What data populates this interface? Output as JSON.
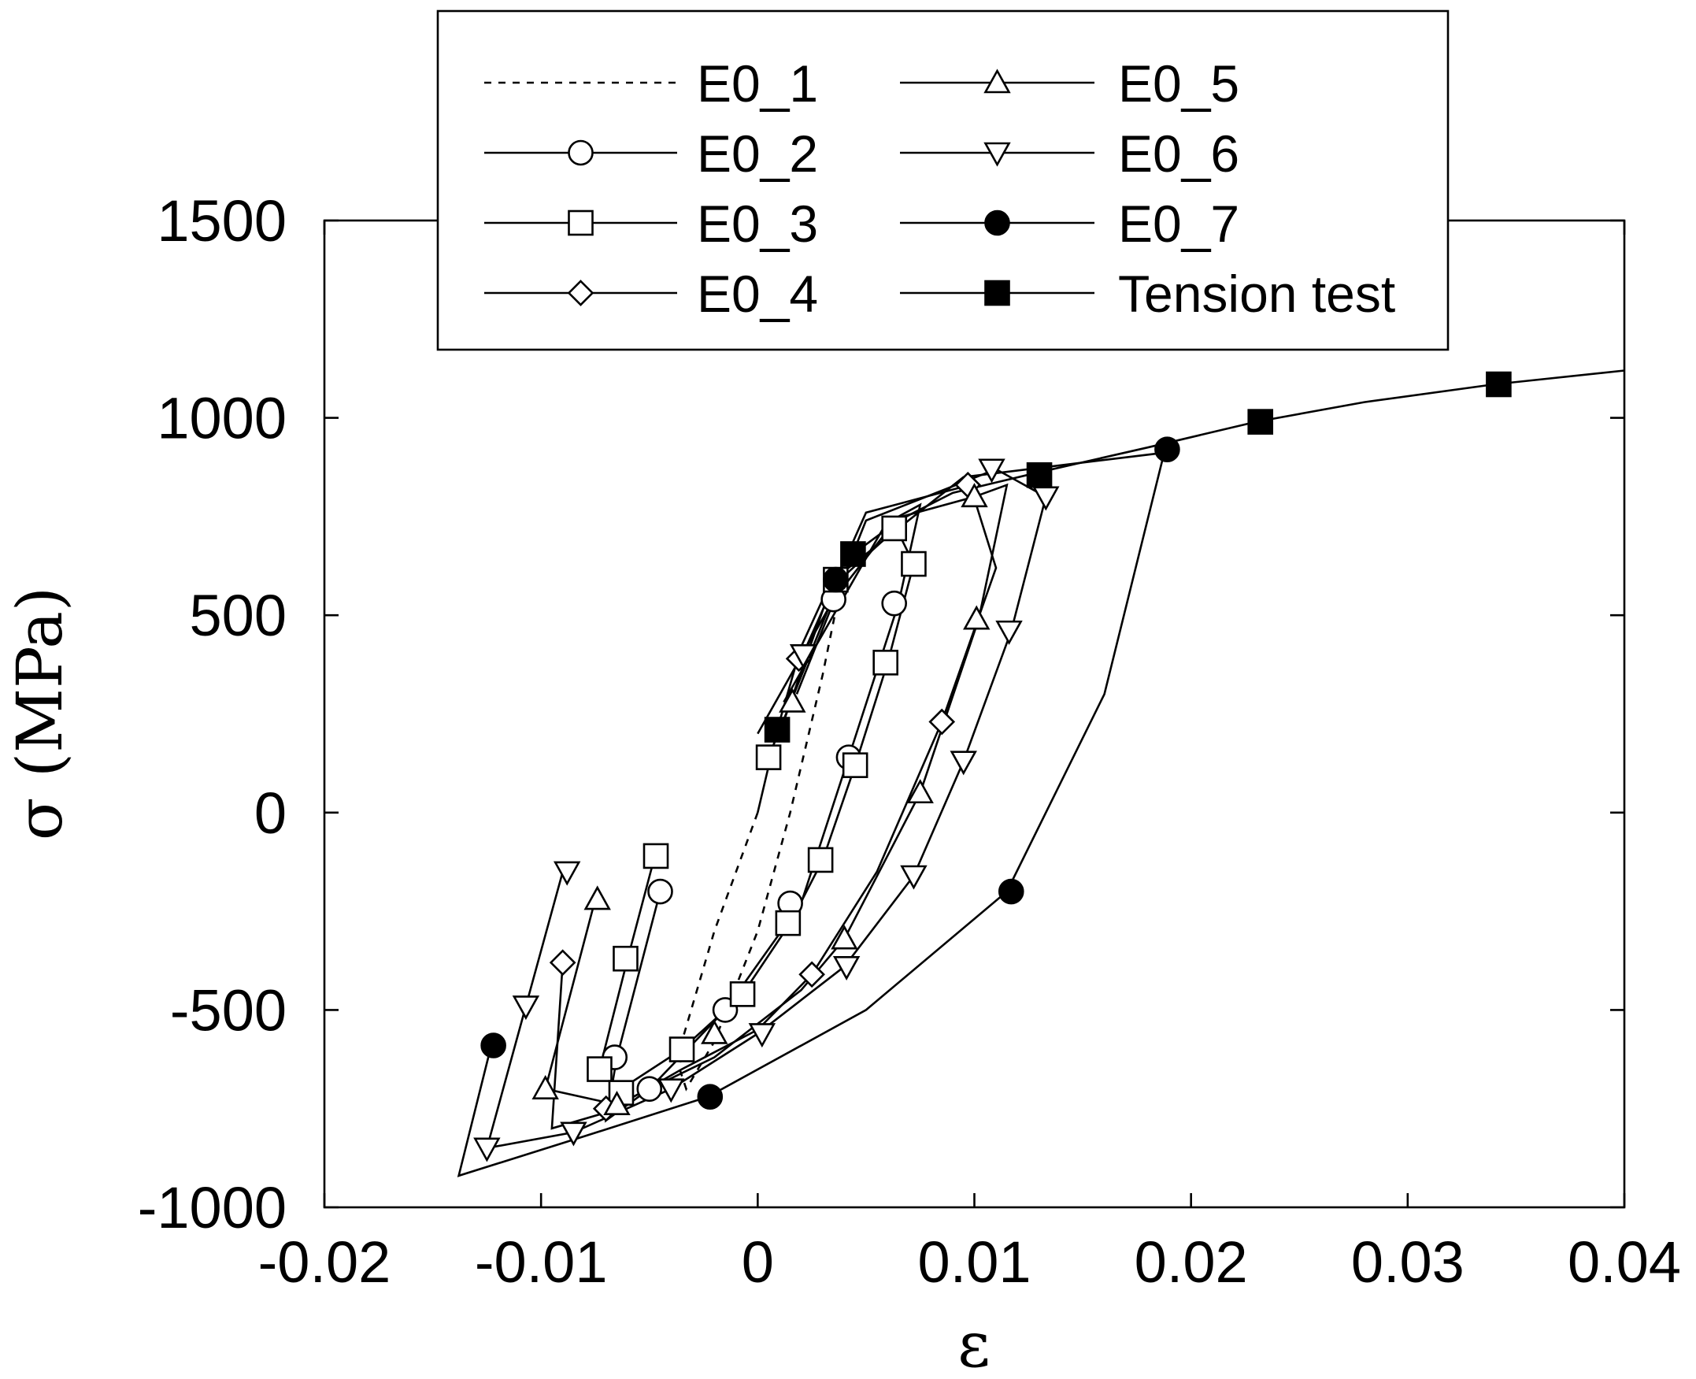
{
  "chart_data": {
    "type": "line",
    "xlabel": "ε",
    "ylabel": "σ (MPa)",
    "xlim": [
      -0.02,
      0.04
    ],
    "ylim": [
      -1000,
      1500
    ],
    "x_ticks": [
      -0.02,
      -0.01,
      0,
      0.01,
      0.02,
      0.03,
      0.04
    ],
    "x_tick_labels": [
      "-0.02",
      "-0.01",
      "0",
      "0.01",
      "0.02",
      "0.03",
      "0.04"
    ],
    "y_ticks": [
      -1000,
      -500,
      0,
      500,
      1000,
      1500
    ],
    "y_tick_labels": [
      "-1000",
      "-500",
      "0",
      "500",
      "1000",
      "1500"
    ],
    "grid": false,
    "legend_position": "top-center",
    "series": [
      {
        "name": "E0_1",
        "marker": "none",
        "dashed": true,
        "x": [
          0.0,
          -0.002,
          -0.0035,
          -0.0036,
          -0.0033,
          -0.002,
          0.0,
          0.0015,
          0.003,
          0.004
        ],
        "y": [
          0,
          -300,
          -580,
          -650,
          -700,
          -580,
          -300,
          0,
          350,
          620
        ]
      },
      {
        "name": "E0_2",
        "marker": "circle",
        "dashed": false,
        "x": [
          -0.0045,
          -0.0065,
          -0.007,
          -0.005,
          -0.0015,
          0.002,
          0.0042,
          0.0065,
          0.0075,
          0.0065,
          0.0035,
          0.0
        ],
        "y": [
          -200,
          -620,
          -780,
          -700,
          -500,
          -230,
          140,
          530,
          780,
          750,
          540,
          200
        ]
      },
      {
        "name": "E0_3",
        "marker": "square",
        "dashed": false,
        "x": [
          -0.0047,
          -0.006,
          -0.0073,
          -0.0063,
          -0.0035,
          -0.0007,
          0.0015,
          0.003,
          0.0045,
          0.006,
          0.0072,
          0.0064,
          0.0038,
          0.0005
        ],
        "y": [
          -100,
          -370,
          -650,
          -700,
          -600,
          -460,
          -280,
          -120,
          120,
          380,
          630,
          720,
          590,
          140
        ]
      },
      {
        "name": "E0_4",
        "marker": "diamond",
        "dashed": false,
        "x": [
          -0.009,
          -0.0095,
          -0.007,
          -0.0035,
          0.0,
          0.0025,
          0.0055,
          0.0085,
          0.011,
          0.0098,
          0.005,
          0.002
        ],
        "y": [
          -380,
          -800,
          -760,
          -650,
          -550,
          -410,
          -150,
          230,
          620,
          830,
          760,
          390
        ]
      },
      {
        "name": "E0_5",
        "marker": "triangle-up",
        "dashed": false,
        "x": [
          -0.0075,
          -0.0098,
          -0.0065,
          -0.002,
          0.002,
          0.004,
          0.0075,
          0.0102,
          0.0115,
          0.01,
          0.006,
          0.0012
        ],
        "y": [
          -220,
          -700,
          -740,
          -620,
          -450,
          -320,
          50,
          490,
          830,
          800,
          740,
          280
        ]
      },
      {
        "name": "E0_6",
        "marker": "triangle-down",
        "dashed": false,
        "x": [
          -0.009,
          -0.0107,
          -0.0125,
          -0.0085,
          -0.004,
          0.0,
          0.004,
          0.0072,
          0.0095,
          0.0117,
          0.0133,
          0.011,
          0.005,
          0.0018
        ],
        "y": [
          -150,
          -490,
          -850,
          -810,
          -700,
          -560,
          -390,
          -160,
          130,
          460,
          800,
          870,
          740,
          300
        ]
      },
      {
        "name": "E0_7",
        "marker": "circle-filled",
        "dashed": false,
        "x": [
          -0.0123,
          -0.0138,
          -0.008,
          -0.0023,
          0.005,
          0.0115,
          0.016,
          0.0188,
          0.0185,
          0.0095,
          0.0035,
          0.001
        ],
        "y": [
          -590,
          -920,
          -820,
          -720,
          -500,
          -200,
          300,
          920,
          910,
          850,
          590,
          200
        ]
      },
      {
        "name": "Tension test",
        "marker": "square-filled",
        "dashed": false,
        "x": [
          0.0,
          0.0009,
          0.002,
          0.0035,
          0.0044,
          0.0065,
          0.009,
          0.0128,
          0.018,
          0.023,
          0.028,
          0.034,
          0.04
        ],
        "y": [
          0,
          210,
          420,
          600,
          655,
          740,
          810,
          860,
          925,
          990,
          1040,
          1085,
          1120
        ]
      }
    ],
    "marker_points": [
      {
        "series": "E0_2",
        "x": [
          -0.0045,
          -0.0066,
          -0.005,
          -0.0015,
          0.0015,
          0.0042,
          0.0063,
          0.0035
        ],
        "y": [
          -200,
          -620,
          -700,
          -500,
          -230,
          140,
          530,
          540
        ]
      },
      {
        "series": "E0_3",
        "x": [
          -0.0047,
          -0.0061,
          -0.0073,
          -0.0063,
          -0.0035,
          -0.0007,
          0.0014,
          0.0029,
          0.0045,
          0.0059,
          0.0072,
          0.0063,
          0.0036,
          0.0005
        ],
        "y": [
          -110,
          -370,
          -650,
          -710,
          -600,
          -460,
          -280,
          -120,
          120,
          380,
          630,
          720,
          590,
          140
        ]
      },
      {
        "series": "E0_4",
        "x": [
          -0.009,
          -0.007,
          0.0025,
          0.0085,
          0.0097,
          0.0019
        ],
        "y": [
          -380,
          -750,
          -410,
          230,
          830,
          390
        ]
      },
      {
        "series": "E0_5",
        "x": [
          -0.0074,
          -0.0098,
          -0.0065,
          -0.002,
          0.004,
          0.0075,
          0.0101,
          0.01,
          0.0016
        ],
        "y": [
          -220,
          -700,
          -740,
          -560,
          -320,
          50,
          490,
          800,
          280
        ]
      },
      {
        "series": "E0_6",
        "x": [
          -0.0088,
          -0.0107,
          -0.0125,
          -0.0085,
          -0.004,
          0.0002,
          0.0041,
          0.0072,
          0.0095,
          0.0116,
          0.0133,
          0.0108,
          0.0021
        ],
        "y": [
          -150,
          -490,
          -850,
          -810,
          -700,
          -560,
          -390,
          -160,
          130,
          460,
          800,
          870,
          400
        ]
      },
      {
        "series": "E0_7",
        "x": [
          -0.0122,
          -0.0022,
          0.0117,
          0.0189,
          0.0036
        ],
        "y": [
          -590,
          -720,
          -200,
          920,
          590
        ]
      },
      {
        "series": "Tension test",
        "x": [
          0.0009,
          0.0044,
          0.013,
          0.0232,
          0.0342
        ],
        "y": [
          210,
          655,
          855,
          990,
          1085
        ]
      }
    ]
  }
}
